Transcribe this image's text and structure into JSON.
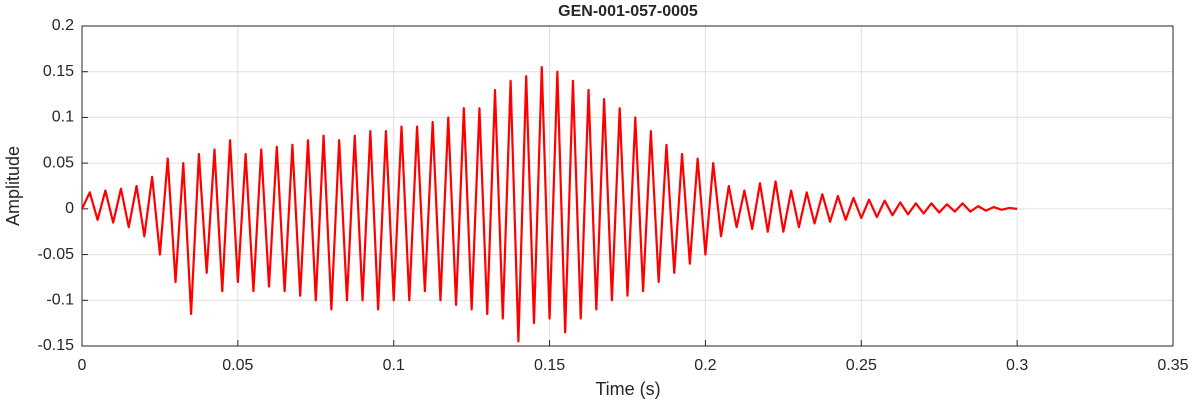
{
  "chart_data": {
    "type": "line",
    "title": "GEN-001-057-0005",
    "xlabel": "Time (s)",
    "ylabel": "Amplitude",
    "x": [
      0,
      0.0025,
      0.005,
      0.0075,
      0.01,
      0.0125,
      0.015,
      0.0175,
      0.02,
      0.0225,
      0.025,
      0.0275,
      0.03,
      0.0325,
      0.035,
      0.0375,
      0.04,
      0.0425,
      0.045,
      0.0475,
      0.05,
      0.0525,
      0.055,
      0.0575,
      0.06,
      0.0625,
      0.065,
      0.0675,
      0.07,
      0.0725,
      0.075,
      0.0775,
      0.08,
      0.0825,
      0.085,
      0.0875,
      0.09,
      0.0925,
      0.095,
      0.0975,
      0.1,
      0.1025,
      0.105,
      0.1075,
      0.11,
      0.1125,
      0.115,
      0.1175,
      0.12,
      0.1225,
      0.125,
      0.1275,
      0.13,
      0.1325,
      0.135,
      0.1375,
      0.14,
      0.1425,
      0.145,
      0.1475,
      0.15,
      0.1525,
      0.155,
      0.1575,
      0.16,
      0.1625,
      0.165,
      0.1675,
      0.17,
      0.1725,
      0.175,
      0.1775,
      0.18,
      0.1825,
      0.185,
      0.1875,
      0.19,
      0.1925,
      0.195,
      0.1975,
      0.2,
      0.2025,
      0.205,
      0.2075,
      0.21,
      0.2125,
      0.215,
      0.2175,
      0.22,
      0.2225,
      0.225,
      0.2275,
      0.23,
      0.2325,
      0.235,
      0.2375,
      0.24,
      0.2425,
      0.245,
      0.2475,
      0.25,
      0.2525,
      0.255,
      0.2575,
      0.26,
      0.2625,
      0.265,
      0.2675,
      0.27,
      0.2725,
      0.275,
      0.2775,
      0.28,
      0.2825,
      0.285,
      0.2875,
      0.29,
      0.2925,
      0.295,
      0.2975,
      0.3
    ],
    "series": [
      {
        "color": "#ff0000",
        "values": [
          0,
          0.018,
          -0.012,
          0.02,
          -0.015,
          0.022,
          -0.02,
          0.025,
          -0.03,
          0.035,
          -0.05,
          0.055,
          -0.08,
          0.05,
          -0.115,
          0.06,
          -0.07,
          0.065,
          -0.09,
          0.075,
          -0.08,
          0.06,
          -0.09,
          0.065,
          -0.085,
          0.068,
          -0.09,
          0.07,
          -0.095,
          0.075,
          -0.1,
          0.08,
          -0.11,
          0.075,
          -0.1,
          0.08,
          -0.1,
          0.085,
          -0.11,
          0.085,
          -0.1,
          0.09,
          -0.1,
          0.09,
          -0.09,
          0.095,
          -0.1,
          0.1,
          -0.105,
          0.11,
          -0.11,
          0.11,
          -0.115,
          0.13,
          -0.12,
          0.14,
          -0.145,
          0.145,
          -0.125,
          0.155,
          -0.12,
          0.15,
          -0.135,
          0.14,
          -0.12,
          0.13,
          -0.11,
          0.12,
          -0.1,
          0.11,
          -0.095,
          0.1,
          -0.09,
          0.085,
          -0.08,
          0.07,
          -0.07,
          0.06,
          -0.06,
          0.055,
          -0.05,
          0.05,
          -0.03,
          0.025,
          -0.02,
          0.02,
          -0.022,
          0.028,
          -0.025,
          0.03,
          -0.025,
          0.02,
          -0.02,
          0.018,
          -0.016,
          0.016,
          -0.014,
          0.014,
          -0.012,
          0.012,
          -0.01,
          0.01,
          -0.009,
          0.009,
          -0.007,
          0.007,
          -0.006,
          0.006,
          -0.005,
          0.006,
          -0.004,
          0.005,
          -0.003,
          0.006,
          -0.003,
          0.003,
          -0.002,
          0.002,
          -0.001,
          0.001,
          0
        ]
      }
    ],
    "xlim": [
      0,
      0.35
    ],
    "xticks": [
      0,
      0.05,
      0.1,
      0.15,
      0.2,
      0.25,
      0.3,
      0.35
    ],
    "ylim": [
      -0.15,
      0.2
    ],
    "yticks": [
      -0.15,
      -0.1,
      -0.05,
      0,
      0.05,
      0.1,
      0.15,
      0.2
    ],
    "grid": true
  }
}
